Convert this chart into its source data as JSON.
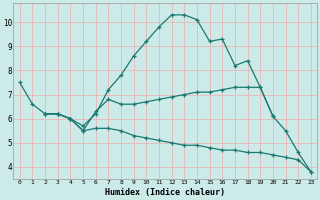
{
  "xlabel": "Humidex (Indice chaleur)",
  "bg_color": "#cceae8",
  "grid_color": "#aad4d0",
  "line_color": "#1a7a70",
  "xlim": [
    -0.5,
    23.5
  ],
  "ylim": [
    3.5,
    10.8
  ],
  "xticks": [
    0,
    1,
    2,
    3,
    4,
    5,
    6,
    7,
    8,
    9,
    10,
    11,
    12,
    13,
    14,
    15,
    16,
    17,
    18,
    19,
    20,
    21,
    22,
    23
  ],
  "yticks": [
    4,
    5,
    6,
    7,
    8,
    9,
    10
  ],
  "lines": [
    {
      "x": [
        0,
        1,
        2,
        3,
        4,
        5,
        6,
        7,
        8,
        9,
        10,
        11,
        12,
        13,
        14,
        15,
        16,
        17,
        18,
        19,
        20,
        21,
        22,
        23
      ],
      "y": [
        7.5,
        6.6,
        6.2,
        6.2,
        6.0,
        5.7,
        6.2,
        7.2,
        7.8,
        8.6,
        9.2,
        9.8,
        10.3,
        10.3,
        10.1,
        9.2,
        9.3,
        8.2,
        8.4,
        7.3,
        6.1,
        5.5,
        4.6,
        3.8
      ]
    },
    {
      "x": [
        2,
        3,
        4,
        5,
        6,
        7,
        8,
        9,
        10,
        11,
        12,
        13,
        14,
        15,
        16,
        17,
        18,
        19,
        20
      ],
      "y": [
        6.2,
        6.2,
        6.0,
        5.5,
        6.3,
        6.8,
        6.6,
        6.6,
        6.7,
        6.8,
        6.9,
        7.0,
        7.1,
        7.1,
        7.2,
        7.3,
        7.3,
        7.3,
        6.1
      ]
    },
    {
      "x": [
        2,
        3,
        4,
        5,
        6,
        7,
        8,
        9,
        10,
        11,
        12,
        13,
        14,
        15,
        16,
        17,
        18,
        19,
        20,
        21,
        22,
        23
      ],
      "y": [
        6.2,
        6.2,
        6.0,
        5.5,
        5.6,
        5.6,
        5.5,
        5.3,
        5.2,
        5.1,
        5.0,
        4.9,
        4.9,
        4.8,
        4.7,
        4.7,
        4.6,
        4.6,
        4.5,
        4.4,
        4.3,
        3.8
      ]
    }
  ]
}
